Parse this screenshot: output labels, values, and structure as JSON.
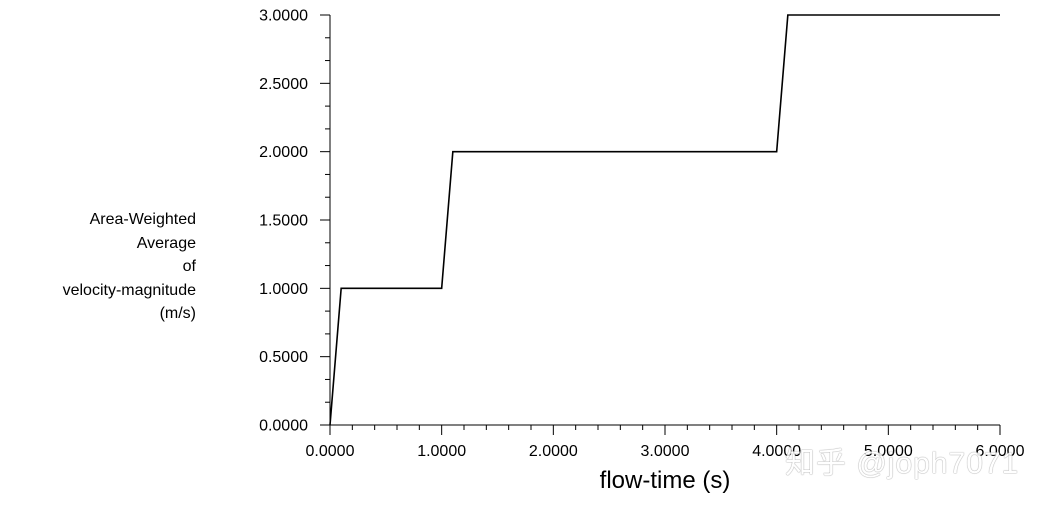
{
  "chart_data": {
    "type": "line",
    "xlabel": "flow-time (s)",
    "ylabel_lines": [
      "Area-Weighted",
      "Average",
      "of",
      "velocity-magnitude",
      "(m/s)"
    ],
    "xlim": [
      0,
      6
    ],
    "ylim": [
      0,
      3
    ],
    "x_ticks": [
      0,
      1,
      2,
      3,
      4,
      5,
      6
    ],
    "x_tick_labels": [
      "0.0000",
      "1.0000",
      "2.0000",
      "3.0000",
      "4.0000",
      "5.0000",
      "6.0000"
    ],
    "y_ticks": [
      0,
      0.5,
      1,
      1.5,
      2,
      2.5,
      3
    ],
    "y_tick_labels": [
      "0.0000",
      "0.5000",
      "1.0000",
      "1.5000",
      "2.0000",
      "2.5000",
      "3.0000"
    ],
    "grid": false,
    "series": [
      {
        "color": "#000000",
        "x": [
          0,
          0.1,
          1.0,
          1.1,
          4.0,
          4.1,
          6.0
        ],
        "y": [
          0,
          1.0,
          1.0,
          2.0,
          2.0,
          3.0,
          3.0
        ]
      }
    ]
  },
  "watermark": "知乎 @joph7071"
}
